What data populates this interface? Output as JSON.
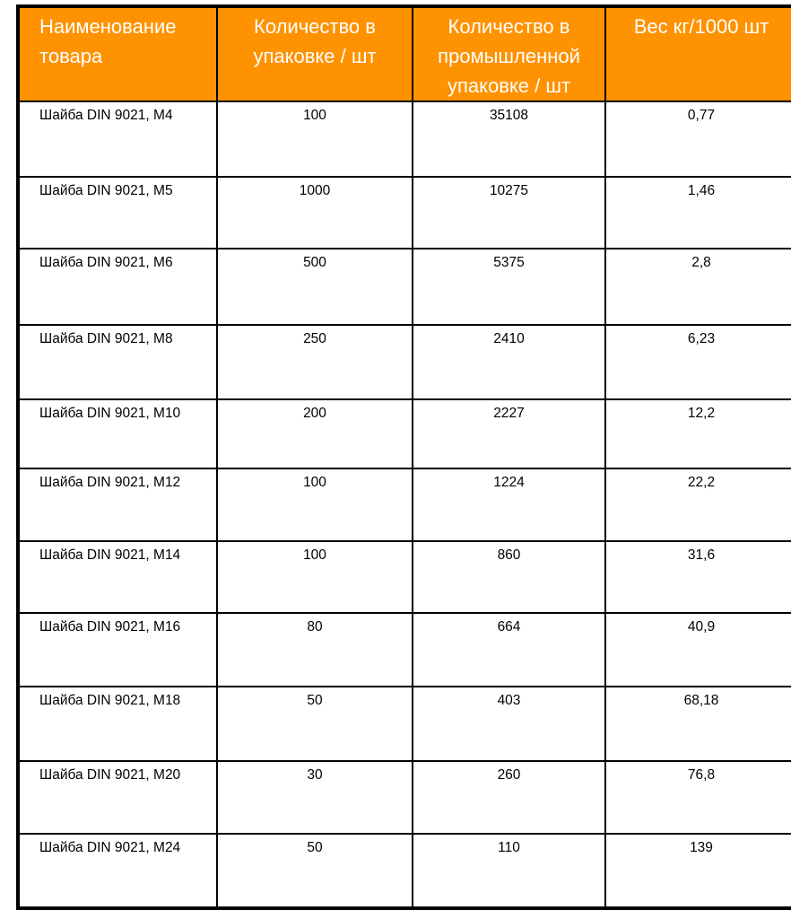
{
  "colors": {
    "header_bg": "#ff9200",
    "header_text": "#ffffff",
    "border": "#000000"
  },
  "headers": [
    "Наименование товара",
    "Количество в упаковке / шт",
    "Количество в промышленной упаковке / шт",
    "Вес кг/1000 шт"
  ],
  "rows": [
    [
      "Шайба DIN 9021, M4",
      "100",
      "35108",
      "0,77"
    ],
    [
      "Шайба DIN 9021, M5",
      "1000",
      "10275",
      "1,46"
    ],
    [
      "Шайба DIN 9021, M6",
      "500",
      "5375",
      "2,8"
    ],
    [
      "Шайба DIN 9021, M8",
      "250",
      "2410",
      "6,23"
    ],
    [
      "Шайба DIN 9021, M10",
      "200",
      "2227",
      "12,2"
    ],
    [
      "Шайба DIN 9021, M12",
      "100",
      "1224",
      "22,2"
    ],
    [
      "Шайба DIN 9021, M14",
      "100",
      "860",
      "31,6"
    ],
    [
      "Шайба DIN 9021, M16",
      "80",
      "664",
      "40,9"
    ],
    [
      "Шайба DIN 9021, M18",
      "50",
      "403",
      "68,18"
    ],
    [
      "Шайба DIN 9021, M20",
      "30",
      "260",
      "76,8"
    ],
    [
      "Шайба DIN 9021, M24",
      "50",
      "110",
      "139"
    ]
  ]
}
